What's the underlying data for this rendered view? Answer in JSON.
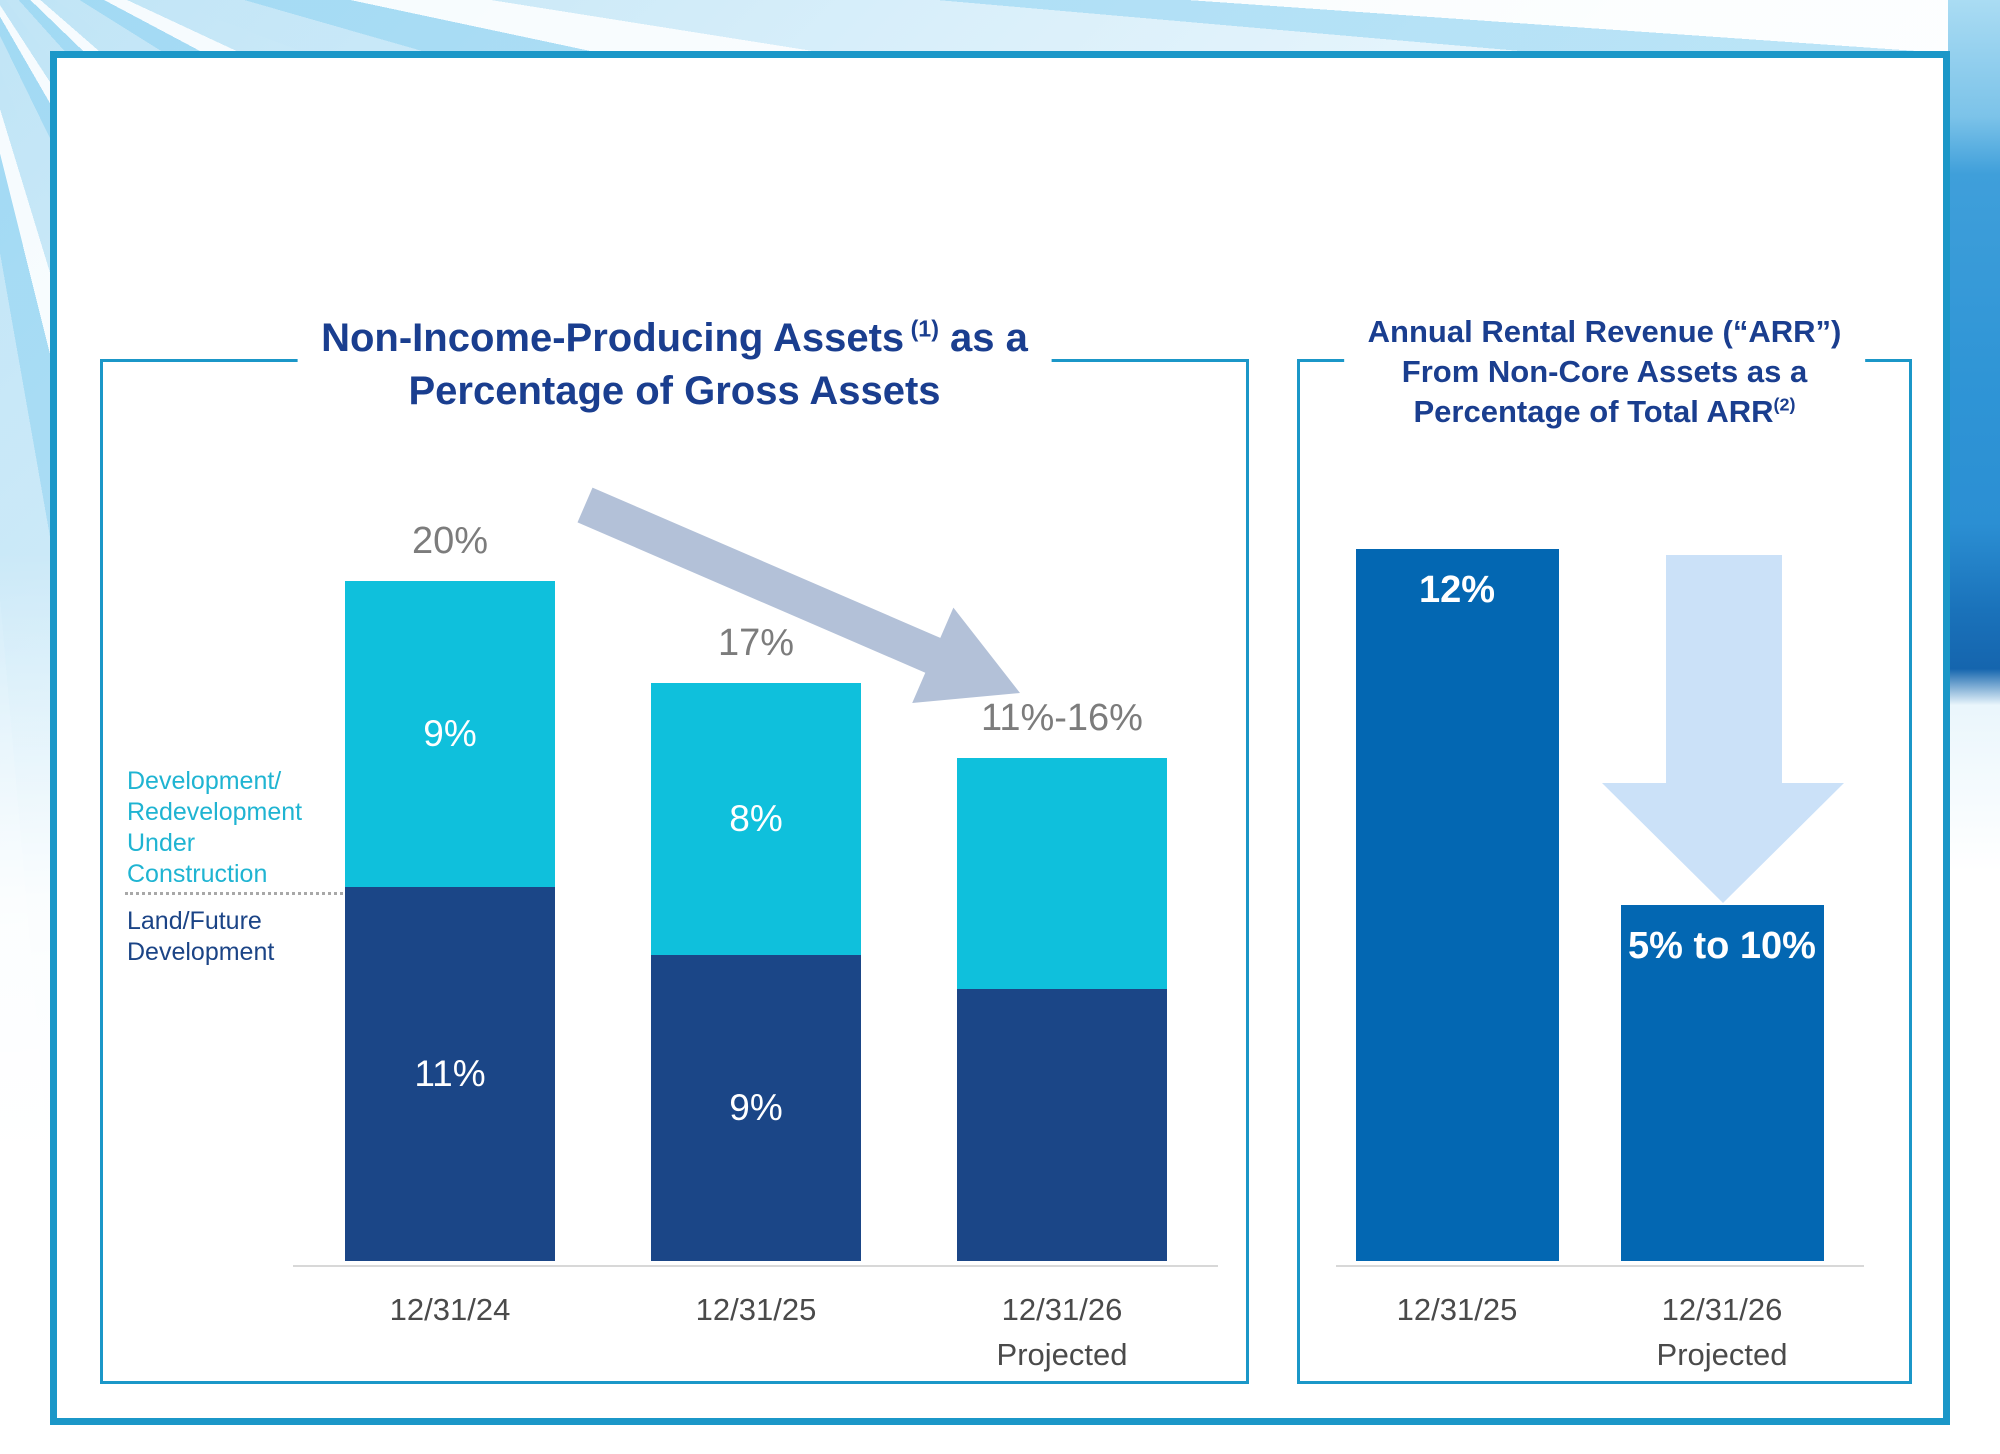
{
  "colors": {
    "teal_border": "#1B97C8",
    "navy_segment": "#1B4687",
    "cyan_segment": "#0FC0DC",
    "blue_bar": "#0367B2",
    "light_blue_arrow": "#CBE1F8",
    "gray_blue_arrow": "#B3C1D8",
    "title_navy": "#1A3E8F",
    "total_label_gray": "#7C7C7C",
    "axis_label_gray": "#4A4A4A"
  },
  "chart_data": [
    {
      "type": "bar",
      "stacked": true,
      "title_plain": "Non-Income-Producing Assets (1) as a Percentage of Gross Assets",
      "title_lines": [
        [
          {
            "t": "Non-Income-Producing Assets"
          },
          {
            "t": " (1)",
            "sup": true
          },
          {
            "t": " as a"
          }
        ],
        [
          {
            "t": "Percentage of Gross Assets"
          }
        ]
      ],
      "categories": [
        "12/31/24",
        "12/31/25",
        "12/31/26\nProjected"
      ],
      "series": [
        {
          "name": "Land/Future Development",
          "color": "#1B4687",
          "values": [
            11,
            9,
            8
          ],
          "labels": [
            "11%",
            "9%",
            ""
          ]
        },
        {
          "name": "Development/Redevelopment Under Construction",
          "color": "#0FC0DC",
          "values": [
            9,
            8,
            6.8
          ],
          "labels": [
            "9%",
            "8%",
            ""
          ]
        }
      ],
      "totals": [
        "20%",
        "17%",
        "11%-16%"
      ],
      "legend": {
        "top_label": "Development/\nRedevelopment\nUnder\nConstruction",
        "bottom_label": "Land/Future\nDevelopment"
      },
      "xlabel": "",
      "ylabel": "",
      "ylim": [
        0,
        22
      ],
      "grid": false,
      "legend_position": "left",
      "annotation": "downward trend arrow"
    },
    {
      "type": "bar",
      "title_plain": "Annual Rental Revenue (“ARR”) From Non-Core Assets as a Percentage of Total ARR(2)",
      "title_lines": [
        [
          {
            "t": "Annual Rental Revenue (“ARR”)"
          }
        ],
        [
          {
            "t": "From Non-Core Assets as a"
          }
        ],
        [
          {
            "t": "Percentage of Total ARR"
          },
          {
            "t": "(2)",
            "sup": true
          }
        ]
      ],
      "categories": [
        "12/31/25",
        "12/31/26\nProjected"
      ],
      "values": [
        12,
        6
      ],
      "labels": [
        "12%",
        "5% to 10%"
      ],
      "bar_color": "#0367B2",
      "xlabel": "",
      "ylabel": "",
      "ylim": [
        0,
        13
      ],
      "grid": false,
      "annotation": "large downward arrow between bars"
    }
  ]
}
